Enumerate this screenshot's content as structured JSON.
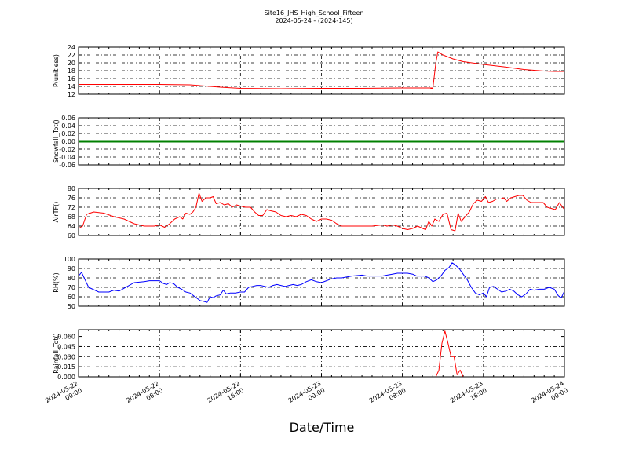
{
  "figure": {
    "title_line1": "Site16_JHS_High_School_Fifteen",
    "title_line2": "2024-05-24 - (2024-145)",
    "xlabel": "Date/Time"
  },
  "chart_data": {
    "type": "line",
    "x_range_hours": [
      0,
      48
    ],
    "x_ticks": [
      {
        "hour": 0,
        "line1": "2024-05-22",
        "line2": "00:00"
      },
      {
        "hour": 8,
        "line1": "2024-05-22",
        "line2": "08:00"
      },
      {
        "hour": 16,
        "line1": "2024-05-22",
        "line2": "16:00"
      },
      {
        "hour": 24,
        "line1": "2024-05-23",
        "line2": "00:00"
      },
      {
        "hour": 32,
        "line1": "2024-05-23",
        "line2": "08:00"
      },
      {
        "hour": 40,
        "line1": "2024-05-23",
        "line2": "16:00"
      },
      {
        "hour": 48,
        "line1": "2024-05-24",
        "line2": "00:00"
      }
    ],
    "panels": [
      {
        "ylabel": "P(unitless)",
        "ylim": [
          12,
          24
        ],
        "yticks": [
          12,
          14,
          16,
          18,
          20,
          22,
          24
        ],
        "tick_decimals": 0,
        "color": "#ff0000",
        "points": [
          [
            0,
            14.5
          ],
          [
            4,
            14.5
          ],
          [
            8,
            14.5
          ],
          [
            11,
            14.4
          ],
          [
            12.5,
            14.1
          ],
          [
            14,
            13.8
          ],
          [
            16,
            13.5
          ],
          [
            20,
            13.4
          ],
          [
            24,
            13.5
          ],
          [
            28,
            13.5
          ],
          [
            32,
            13.6
          ],
          [
            35,
            13.6
          ],
          [
            34.8,
            13.5
          ],
          [
            34.9,
            13.4
          ],
          [
            35,
            13.5
          ],
          [
            35.3,
            20
          ],
          [
            35.5,
            22.8
          ],
          [
            36,
            22
          ],
          [
            37,
            21
          ],
          [
            38,
            20.3
          ],
          [
            40,
            19.6
          ],
          [
            42,
            19
          ],
          [
            44,
            18.3
          ],
          [
            46,
            17.9
          ],
          [
            47,
            17.8
          ],
          [
            48,
            17.8
          ]
        ]
      },
      {
        "ylabel": "Snowfall_Tot()",
        "ylim": [
          -0.06,
          0.06
        ],
        "yticks": [
          -0.06,
          -0.04,
          -0.02,
          0.0,
          0.02,
          0.04,
          0.06
        ],
        "tick_decimals": 2,
        "color": "#008000",
        "line_width": 3,
        "points": [
          [
            0,
            0
          ],
          [
            48,
            0
          ]
        ]
      },
      {
        "ylabel": "AirTF()",
        "ylim": [
          60,
          80
        ],
        "yticks": [
          60,
          64,
          68,
          72,
          76,
          80
        ],
        "tick_decimals": 0,
        "color": "#ff0000",
        "points": [
          [
            0,
            63
          ],
          [
            0.4,
            64
          ],
          [
            0.8,
            69
          ],
          [
            1.5,
            70
          ],
          [
            2.5,
            69.5
          ],
          [
            3.5,
            68
          ],
          [
            4.5,
            67
          ],
          [
            5.5,
            65
          ],
          [
            6.5,
            64
          ],
          [
            7.5,
            64
          ],
          [
            8,
            64.5
          ],
          [
            8.5,
            63.5
          ],
          [
            9,
            65
          ],
          [
            9.5,
            67
          ],
          [
            10,
            68
          ],
          [
            10.3,
            67
          ],
          [
            10.6,
            69.5
          ],
          [
            11,
            69
          ],
          [
            11.3,
            70
          ],
          [
            11.6,
            72
          ],
          [
            11.9,
            78
          ],
          [
            12.2,
            74.5
          ],
          [
            12.6,
            76
          ],
          [
            13,
            76
          ],
          [
            13.3,
            76.5
          ],
          [
            13.6,
            73.5
          ],
          [
            14,
            74
          ],
          [
            14.4,
            73
          ],
          [
            14.8,
            73.5
          ],
          [
            15.2,
            72
          ],
          [
            15.6,
            73
          ],
          [
            16,
            72.5
          ],
          [
            16.5,
            72
          ],
          [
            17,
            72
          ],
          [
            17.4,
            70
          ],
          [
            17.8,
            68.5
          ],
          [
            18.2,
            68.5
          ],
          [
            18.6,
            71
          ],
          [
            19,
            70.5
          ],
          [
            19.5,
            70
          ],
          [
            20,
            68.5
          ],
          [
            20.5,
            68
          ],
          [
            21,
            68.5
          ],
          [
            21.5,
            68
          ],
          [
            22,
            69
          ],
          [
            22.5,
            68.5
          ],
          [
            23,
            67
          ],
          [
            23.5,
            66
          ],
          [
            24,
            67
          ],
          [
            24.5,
            67
          ],
          [
            25,
            66.5
          ],
          [
            25.5,
            65
          ],
          [
            26,
            64
          ],
          [
            27,
            64
          ],
          [
            28,
            64
          ],
          [
            29,
            64
          ],
          [
            30,
            64.5
          ],
          [
            30.5,
            64
          ],
          [
            31,
            64.5
          ],
          [
            31.5,
            64
          ],
          [
            32,
            63
          ],
          [
            32.5,
            62.5
          ],
          [
            33,
            63
          ],
          [
            33.5,
            64
          ],
          [
            34,
            63
          ],
          [
            34.3,
            62.5
          ],
          [
            34.6,
            66
          ],
          [
            34.9,
            64
          ],
          [
            35.2,
            67
          ],
          [
            35.6,
            66
          ],
          [
            36,
            69
          ],
          [
            36.4,
            69.5
          ],
          [
            36.8,
            62.5
          ],
          [
            37.2,
            62
          ],
          [
            37.5,
            69.5
          ],
          [
            37.8,
            66
          ],
          [
            38.2,
            68
          ],
          [
            38.6,
            70
          ],
          [
            39,
            73.5
          ],
          [
            39.4,
            75
          ],
          [
            39.8,
            74.5
          ],
          [
            40.2,
            76.5
          ],
          [
            40.5,
            74
          ],
          [
            40.9,
            74.5
          ],
          [
            41.3,
            75.5
          ],
          [
            41.7,
            75.5
          ],
          [
            42,
            76
          ],
          [
            42.3,
            74.5
          ],
          [
            42.7,
            76
          ],
          [
            43.1,
            76.5
          ],
          [
            43.5,
            77
          ],
          [
            43.9,
            77
          ],
          [
            44.3,
            75
          ],
          [
            44.7,
            74
          ],
          [
            45.1,
            74
          ],
          [
            45.5,
            74
          ],
          [
            45.9,
            74
          ],
          [
            46.3,
            72
          ],
          [
            46.7,
            71.5
          ],
          [
            47.1,
            71
          ],
          [
            47.5,
            74
          ],
          [
            48,
            71
          ]
        ]
      },
      {
        "ylabel": "RH(%)",
        "ylim": [
          50,
          100
        ],
        "yticks": [
          50,
          60,
          70,
          80,
          90,
          100
        ],
        "tick_decimals": 0,
        "color": "#0000ff",
        "points": [
          [
            0,
            82
          ],
          [
            0.3,
            86
          ],
          [
            0.6,
            79
          ],
          [
            1,
            70
          ],
          [
            2,
            65
          ],
          [
            3,
            65
          ],
          [
            3.5,
            67
          ],
          [
            4,
            66
          ],
          [
            4.5,
            69
          ],
          [
            5,
            72
          ],
          [
            5.5,
            75
          ],
          [
            6.5,
            76
          ],
          [
            7,
            77
          ],
          [
            7.5,
            77
          ],
          [
            8,
            77
          ],
          [
            8.4,
            74
          ],
          [
            8.7,
            73
          ],
          [
            9,
            75
          ],
          [
            9.4,
            74
          ],
          [
            9.8,
            70
          ],
          [
            10.2,
            68
          ],
          [
            10.6,
            65
          ],
          [
            11,
            64
          ],
          [
            11.5,
            60
          ],
          [
            12,
            56
          ],
          [
            12.4,
            55
          ],
          [
            12.7,
            54
          ],
          [
            13,
            60
          ],
          [
            13.3,
            59
          ],
          [
            13.6,
            61
          ],
          [
            14,
            62
          ],
          [
            14.3,
            67
          ],
          [
            14.6,
            63
          ],
          [
            15,
            64
          ],
          [
            15.5,
            64
          ],
          [
            16,
            65
          ],
          [
            16.4,
            65
          ],
          [
            16.8,
            70
          ],
          [
            17.2,
            71
          ],
          [
            17.6,
            72
          ],
          [
            18,
            72
          ],
          [
            18.4,
            71
          ],
          [
            18.8,
            70
          ],
          [
            19.2,
            72
          ],
          [
            19.6,
            73
          ],
          [
            20,
            72
          ],
          [
            20.4,
            71
          ],
          [
            20.8,
            72
          ],
          [
            21.2,
            73
          ],
          [
            21.6,
            72
          ],
          [
            22,
            73
          ],
          [
            22.5,
            76
          ],
          [
            23,
            78
          ],
          [
            23.5,
            76
          ],
          [
            24,
            75
          ],
          [
            24.5,
            77
          ],
          [
            25,
            79
          ],
          [
            25.5,
            80
          ],
          [
            26,
            80
          ],
          [
            27,
            82
          ],
          [
            28,
            83
          ],
          [
            28.5,
            82
          ],
          [
            29,
            82
          ],
          [
            29.5,
            82
          ],
          [
            30,
            82
          ],
          [
            30.5,
            83
          ],
          [
            31,
            84
          ],
          [
            31.5,
            85
          ],
          [
            32,
            85
          ],
          [
            32.5,
            85
          ],
          [
            33,
            84
          ],
          [
            33.4,
            82
          ],
          [
            33.8,
            82
          ],
          [
            34.2,
            82
          ],
          [
            34.6,
            80
          ],
          [
            35,
            76
          ],
          [
            35.4,
            78
          ],
          [
            35.8,
            82
          ],
          [
            36.2,
            88
          ],
          [
            36.6,
            91
          ],
          [
            36.9,
            96
          ],
          [
            37.2,
            94
          ],
          [
            37.6,
            90
          ],
          [
            38,
            84
          ],
          [
            38.4,
            78
          ],
          [
            38.8,
            70
          ],
          [
            39.2,
            64
          ],
          [
            39.6,
            62
          ],
          [
            40,
            64
          ],
          [
            40.3,
            60
          ],
          [
            40.6,
            70
          ],
          [
            41,
            71
          ],
          [
            41.4,
            68
          ],
          [
            41.8,
            65
          ],
          [
            42.2,
            66
          ],
          [
            42.6,
            68
          ],
          [
            43,
            66
          ],
          [
            43.4,
            62
          ],
          [
            43.8,
            60
          ],
          [
            44.2,
            63
          ],
          [
            44.6,
            68
          ],
          [
            45,
            67
          ],
          [
            45.5,
            68
          ],
          [
            46,
            68
          ],
          [
            46.5,
            70
          ],
          [
            47,
            68
          ],
          [
            47.4,
            61
          ],
          [
            47.7,
            59
          ],
          [
            48,
            66
          ]
        ]
      },
      {
        "ylabel": "Rainfall_Tot()",
        "ylim": [
          0,
          0.07
        ],
        "yticks": [
          0.0,
          0.015,
          0.03,
          0.045,
          0.06
        ],
        "tick_decimals": 3,
        "color": "#ff0000",
        "points": [
          [
            0,
            0
          ],
          [
            35,
            0
          ],
          [
            35.3,
            0
          ],
          [
            35.6,
            0.01
          ],
          [
            35.9,
            0.05
          ],
          [
            36.2,
            0.068
          ],
          [
            36.5,
            0.05
          ],
          [
            36.8,
            0.03
          ],
          [
            37.1,
            0.03
          ],
          [
            37.4,
            0.003
          ],
          [
            37.7,
            0.01
          ],
          [
            38,
            0
          ],
          [
            48,
            0
          ]
        ]
      }
    ]
  }
}
